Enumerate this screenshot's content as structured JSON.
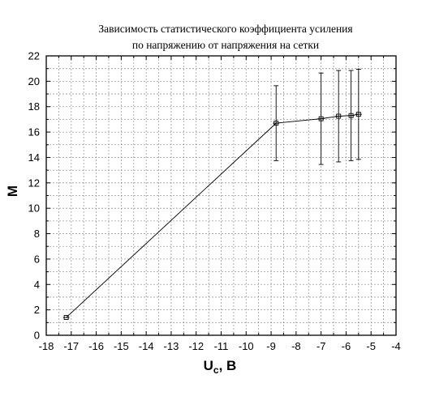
{
  "chart_data": {
    "type": "scatter",
    "title_lines": [
      "Зависимость статистического коэффициента усиления",
      "по напряжению от напряжения на сетки"
    ],
    "xlabel_main": "U",
    "xlabel_sub": "c",
    "xlabel_unit": ", B",
    "ylabel": "M",
    "xlim": [
      -18,
      -4
    ],
    "ylim": [
      0,
      22
    ],
    "x_ticks": [
      "-18",
      "-17",
      "-16",
      "-15",
      "-14",
      "-13",
      "-12",
      "-11",
      "-10",
      "-9",
      "-8",
      "-7",
      "-6",
      "-5",
      "-4"
    ],
    "y_ticks": [
      "0",
      "2",
      "4",
      "6",
      "8",
      "10",
      "12",
      "14",
      "16",
      "18",
      "20",
      "22"
    ],
    "grid": true,
    "series": [
      {
        "points": [
          {
            "x": -17.2,
            "y": 1.4,
            "err": 0.0
          },
          {
            "x": -8.8,
            "y": 16.7,
            "err": 2.95
          },
          {
            "x": -7.0,
            "y": 17.05,
            "err": 3.6
          },
          {
            "x": -6.3,
            "y": 17.25,
            "err": 3.6
          },
          {
            "x": -5.8,
            "y": 17.3,
            "err": 3.55
          },
          {
            "x": -5.5,
            "y": 17.4,
            "err": 3.55
          }
        ]
      }
    ]
  }
}
